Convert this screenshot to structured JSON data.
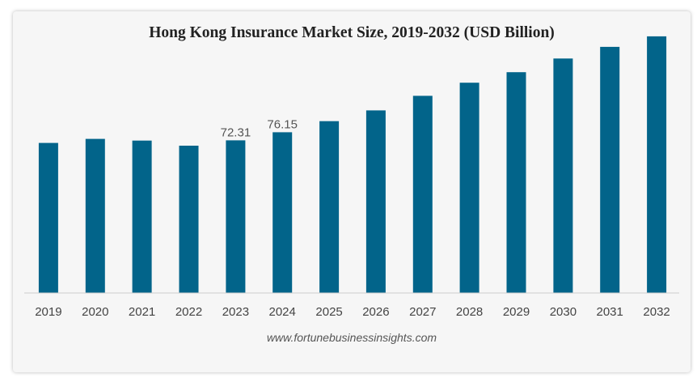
{
  "chart_data": {
    "type": "bar",
    "title": "Hong Kong Insurance Market Size, 2019-2032 (USD Billion)",
    "xlabel": "",
    "ylabel": "",
    "categories": [
      "2019",
      "2020",
      "2021",
      "2022",
      "2023",
      "2024",
      "2025",
      "2026",
      "2027",
      "2028",
      "2029",
      "2030",
      "2031",
      "2032"
    ],
    "values": [
      71.1,
      73.0,
      72.2,
      69.8,
      72.31,
      76.15,
      81.4,
      86.5,
      93.4,
      99.6,
      104.6,
      111.1,
      116.6,
      121.6
    ],
    "data_labels": [
      null,
      null,
      null,
      null,
      "72.31",
      "76.15",
      null,
      null,
      null,
      null,
      null,
      null,
      null,
      null
    ],
    "ylim": [
      0,
      125
    ],
    "grid": false,
    "bar_color": "#02648a",
    "source": "www.fortunebusinessinsights.com"
  }
}
